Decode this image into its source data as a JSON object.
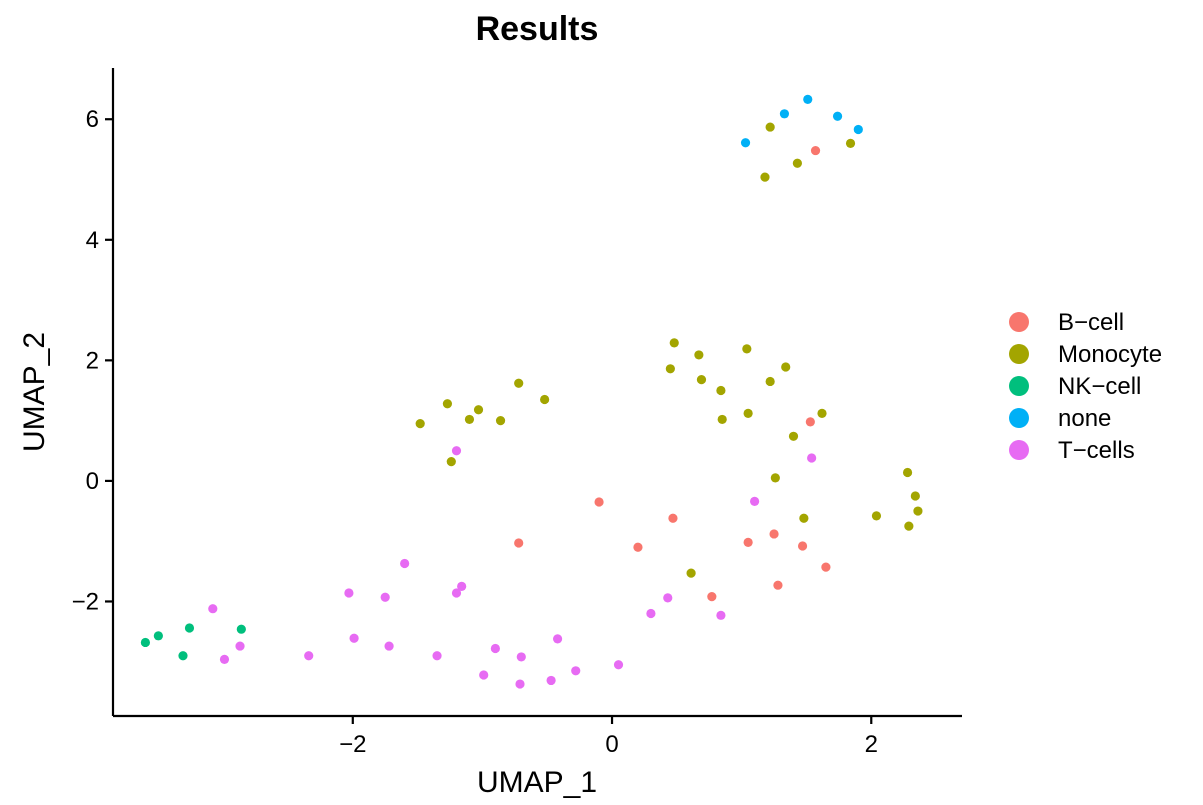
{
  "chart_data": {
    "type": "scatter",
    "title": "Results",
    "xlabel": "UMAP_1",
    "ylabel": "UMAP_2",
    "xlim": [
      -3.85,
      2.7
    ],
    "ylim": [
      -3.9,
      6.85
    ],
    "xticks": [
      {
        "value": -2,
        "label": "−2"
      },
      {
        "value": 0,
        "label": "0"
      },
      {
        "value": 2,
        "label": "2"
      }
    ],
    "yticks": [
      {
        "value": -2,
        "label": "−2"
      },
      {
        "value": 0,
        "label": "0"
      },
      {
        "value": 2,
        "label": "2"
      },
      {
        "value": 4,
        "label": "4"
      },
      {
        "value": 6,
        "label": "6"
      }
    ],
    "grid": false,
    "legend_position": "right",
    "series": [
      {
        "name": "B−cell",
        "color": "#F8766D",
        "points": [
          [
            1.57,
            5.48
          ],
          [
            1.53,
            0.98
          ],
          [
            -0.1,
            -0.35
          ],
          [
            0.47,
            -0.62
          ],
          [
            -0.72,
            -1.03
          ],
          [
            0.2,
            -1.1
          ],
          [
            1.05,
            -1.02
          ],
          [
            1.25,
            -0.88
          ],
          [
            1.47,
            -1.08
          ],
          [
            1.65,
            -1.43
          ],
          [
            1.28,
            -1.73
          ],
          [
            0.77,
            -1.92
          ]
        ]
      },
      {
        "name": "Monocyte",
        "color": "#A3A500",
        "points": [
          [
            1.22,
            5.87
          ],
          [
            1.43,
            5.27
          ],
          [
            1.18,
            5.04
          ],
          [
            1.84,
            5.6
          ],
          [
            0.48,
            2.29
          ],
          [
            0.67,
            2.09
          ],
          [
            1.04,
            2.19
          ],
          [
            0.45,
            1.86
          ],
          [
            0.69,
            1.68
          ],
          [
            0.84,
            1.5
          ],
          [
            1.22,
            1.65
          ],
          [
            1.34,
            1.89
          ],
          [
            1.05,
            1.12
          ],
          [
            0.85,
            1.02
          ],
          [
            1.62,
            1.12
          ],
          [
            1.4,
            0.74
          ],
          [
            -0.72,
            1.62
          ],
          [
            -0.52,
            1.35
          ],
          [
            -1.27,
            1.28
          ],
          [
            -1.03,
            1.18
          ],
          [
            -1.1,
            1.02
          ],
          [
            -0.86,
            1.0
          ],
          [
            -1.48,
            0.95
          ],
          [
            -1.24,
            0.32
          ],
          [
            1.26,
            0.05
          ],
          [
            1.48,
            -0.62
          ],
          [
            2.28,
            0.14
          ],
          [
            2.34,
            -0.25
          ],
          [
            2.36,
            -0.5
          ],
          [
            2.04,
            -0.58
          ],
          [
            2.29,
            -0.75
          ],
          [
            0.61,
            -1.53
          ]
        ]
      },
      {
        "name": "NK−cell",
        "color": "#00BF7D",
        "points": [
          [
            -3.6,
            -2.68
          ],
          [
            -3.5,
            -2.57
          ],
          [
            -3.26,
            -2.44
          ],
          [
            -2.86,
            -2.46
          ],
          [
            -3.31,
            -2.9
          ]
        ]
      },
      {
        "name": "none",
        "color": "#00B0F6",
        "points": [
          [
            1.51,
            6.33
          ],
          [
            1.33,
            6.09
          ],
          [
            1.74,
            6.05
          ],
          [
            1.9,
            5.83
          ],
          [
            1.03,
            5.61
          ]
        ]
      },
      {
        "name": "T−cells",
        "color": "#E76BF3",
        "points": [
          [
            -1.2,
            0.5
          ],
          [
            1.54,
            0.38
          ],
          [
            1.1,
            -0.34
          ],
          [
            -1.6,
            -1.37
          ],
          [
            -1.16,
            -1.75
          ],
          [
            -1.2,
            -1.86
          ],
          [
            -2.03,
            -1.86
          ],
          [
            -1.75,
            -1.93
          ],
          [
            -3.08,
            -2.12
          ],
          [
            0.43,
            -1.94
          ],
          [
            0.3,
            -2.2
          ],
          [
            0.84,
            -2.23
          ],
          [
            -2.87,
            -2.74
          ],
          [
            -2.99,
            -2.96
          ],
          [
            -1.99,
            -2.61
          ],
          [
            -1.72,
            -2.74
          ],
          [
            -2.34,
            -2.9
          ],
          [
            -1.35,
            -2.9
          ],
          [
            -0.9,
            -2.78
          ],
          [
            -0.7,
            -2.92
          ],
          [
            -0.42,
            -2.62
          ],
          [
            -0.28,
            -3.15
          ],
          [
            0.05,
            -3.05
          ],
          [
            -0.47,
            -3.31
          ],
          [
            -0.99,
            -3.22
          ],
          [
            -0.71,
            -3.37
          ]
        ]
      }
    ]
  }
}
